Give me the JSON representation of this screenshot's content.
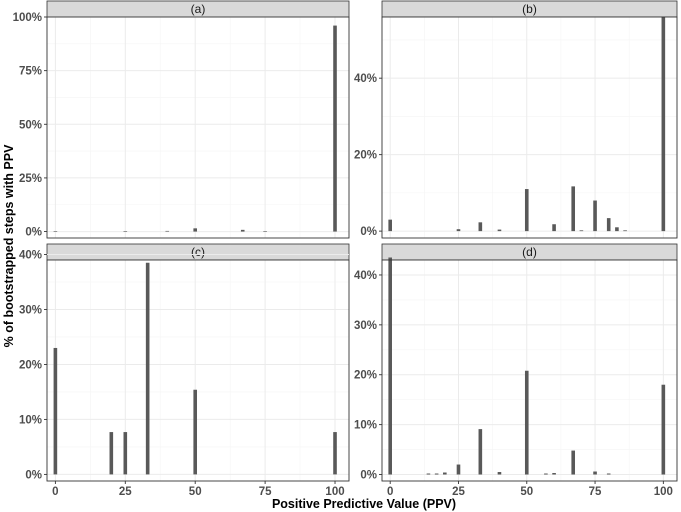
{
  "figure": {
    "xlabel": "Positive Predictive Value (PPV)",
    "ylabel": "% of bootstrapped steps with PPV"
  },
  "colors": {
    "bar": "#595959",
    "strip_bg": "#d9d9d9",
    "strip_border": "#333333",
    "panel_border": "#333333",
    "grid_major": "#ebebeb",
    "grid_minor": "#f5f5f5"
  },
  "chart_data": [
    {
      "type": "bar",
      "title": "(a)",
      "xlim": [
        -3,
        105
      ],
      "ylim": [
        -3,
        100
      ],
      "x_ticks": [
        0,
        25,
        50,
        75,
        100
      ],
      "x_tick_labels": [
        "0",
        "25",
        "50",
        "75",
        "100"
      ],
      "y_ticks": [
        0,
        25,
        50,
        75,
        100
      ],
      "y_tick_labels": [
        "0%",
        "25%",
        "50%",
        "75%",
        "100%"
      ],
      "show_x_tick_labels": false,
      "show_y_tick_labels": true,
      "x": [
        0,
        25,
        40,
        50,
        67,
        75,
        100
      ],
      "values": [
        0.2,
        0.2,
        0.3,
        1.5,
        0.8,
        0.2,
        96
      ]
    },
    {
      "type": "bar",
      "title": "(b)",
      "xlim": [
        -3,
        105
      ],
      "ylim": [
        -1.8,
        56
      ],
      "x_ticks": [
        0,
        25,
        50,
        75,
        100
      ],
      "x_tick_labels": [
        "0",
        "25",
        "50",
        "75",
        "100"
      ],
      "y_ticks": [
        0,
        20,
        40
      ],
      "y_tick_labels": [
        "0%",
        "20%",
        "40%"
      ],
      "show_x_tick_labels": false,
      "show_y_tick_labels": true,
      "x": [
        0,
        25,
        33,
        40,
        50,
        60,
        67,
        70,
        75,
        80,
        83,
        86,
        100
      ],
      "values": [
        3,
        0.5,
        2.3,
        0.4,
        11,
        1.8,
        11.7,
        0.2,
        8,
        3.4,
        1,
        0.2,
        56
      ]
    },
    {
      "type": "bar",
      "title": "(c)",
      "xlim": [
        -3,
        105
      ],
      "ylim": [
        -1.2,
        39
      ],
      "x_ticks": [
        0,
        25,
        50,
        75,
        100
      ],
      "x_tick_labels": [
        "0",
        "25",
        "50",
        "75",
        "100"
      ],
      "y_ticks": [
        0,
        10,
        20,
        30,
        40
      ],
      "y_tick_labels": [
        "0%",
        "10%",
        "20%",
        "30%",
        "40%"
      ],
      "show_x_tick_labels": true,
      "show_y_tick_labels": true,
      "x": [
        0,
        20,
        25,
        33,
        50,
        100
      ],
      "values": [
        23,
        7.7,
        7.7,
        38.5,
        15.4,
        7.7
      ]
    },
    {
      "type": "bar",
      "title": "(d)",
      "xlim": [
        -3,
        105
      ],
      "ylim": [
        -1.3,
        43
      ],
      "x_ticks": [
        0,
        25,
        50,
        75,
        100
      ],
      "x_tick_labels": [
        "0",
        "25",
        "50",
        "75",
        "100"
      ],
      "y_ticks": [
        0,
        10,
        20,
        30,
        40
      ],
      "y_tick_labels": [
        "0%",
        "10%",
        "20%",
        "30%",
        "40%"
      ],
      "show_x_tick_labels": true,
      "show_y_tick_labels": true,
      "x": [
        0,
        14,
        17,
        20,
        25,
        33,
        40,
        50,
        57,
        60,
        67,
        75,
        80,
        100
      ],
      "values": [
        43.5,
        0.2,
        0.2,
        0.4,
        2,
        9.1,
        0.5,
        20.8,
        0.2,
        0.3,
        4.8,
        0.6,
        0.2,
        18
      ]
    }
  ]
}
